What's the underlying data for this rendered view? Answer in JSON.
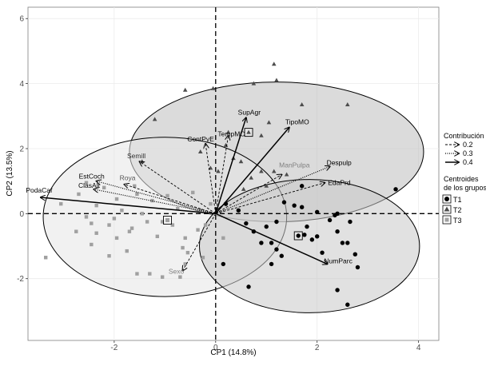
{
  "chart_data": {
    "type": "scatter",
    "title": "",
    "xlabel": "CP1 (14.8%)",
    "ylabel": "CP2 (13.5%)",
    "xlim": [
      -3.7,
      4.4
    ],
    "ylim": [
      -3.9,
      6.35
    ],
    "x_ticks": [
      -2,
      0,
      2,
      4
    ],
    "y_ticks": [
      -2,
      0,
      2,
      4,
      6
    ],
    "x_tick_labels": [
      "-2",
      "0",
      "2",
      "4"
    ],
    "y_tick_labels": [
      "-2",
      "0",
      "2",
      "4",
      "6"
    ],
    "grid": true,
    "colors": {
      "T1": "#000000",
      "T2": "#4d4d4d",
      "T3": "#a0a0a0",
      "ellipse_T1": "#c8c8c8",
      "ellipse_T2": "#bdbdbd",
      "ellipse_T3": "#e6e6e6"
    },
    "groups": [
      {
        "name": "T1",
        "marker": "circle",
        "ellipse": {
          "center": [
            1.85,
            -1.0
          ],
          "rx": 2.17,
          "ry": 2.05
        },
        "centroid": [
          1.63,
          -0.68
        ],
        "points": [
          [
            0.2,
            0.3
          ],
          [
            0.45,
            0.1
          ],
          [
            0.6,
            -0.3
          ],
          [
            0.75,
            -0.55
          ],
          [
            1.0,
            -0.4
          ],
          [
            1.2,
            -0.25
          ],
          [
            0.9,
            -0.9
          ],
          [
            1.2,
            -1.1
          ],
          [
            1.3,
            -1.3
          ],
          [
            1.35,
            0.35
          ],
          [
            1.55,
            0.25
          ],
          [
            1.7,
            0.2
          ],
          [
            1.8,
            -0.4
          ],
          [
            1.9,
            -0.8
          ],
          [
            2.0,
            -0.7
          ],
          [
            2.1,
            -1.2
          ],
          [
            2.25,
            -0.2
          ],
          [
            2.35,
            -0.05
          ],
          [
            2.4,
            0.0
          ],
          [
            2.65,
            -0.25
          ],
          [
            2.0,
            0.05
          ],
          [
            2.4,
            -0.55
          ],
          [
            2.5,
            -0.9
          ],
          [
            2.6,
            -0.9
          ],
          [
            2.75,
            -1.25
          ],
          [
            2.8,
            -1.65
          ],
          [
            1.7,
            0.85
          ],
          [
            1.75,
            -0.65
          ],
          [
            2.4,
            -2.35
          ],
          [
            2.6,
            -2.8
          ],
          [
            3.55,
            0.75
          ],
          [
            1.1,
            -1.55
          ],
          [
            0.65,
            -2.25
          ],
          [
            0.15,
            -1.55
          ],
          [
            1.1,
            -0.9
          ]
        ]
      },
      {
        "name": "T2",
        "marker": "triangle",
        "ellipse": {
          "center": [
            1.2,
            1.9
          ],
          "rx": 2.9,
          "ry": 2.15
        },
        "centroid": [
          0.65,
          2.5
        ],
        "points": [
          [
            -1.2,
            2.9
          ],
          [
            -0.6,
            3.8
          ],
          [
            -0.05,
            3.85
          ],
          [
            0.75,
            4.0
          ],
          [
            1.2,
            4.1
          ],
          [
            1.15,
            4.6
          ],
          [
            1.7,
            3.35
          ],
          [
            2.6,
            3.35
          ],
          [
            -1.45,
            1.6
          ],
          [
            -0.3,
            1.9
          ],
          [
            -0.1,
            1.4
          ],
          [
            0.2,
            2.1
          ],
          [
            0.05,
            1.3
          ],
          [
            0.35,
            1.7
          ],
          [
            0.5,
            1.6
          ],
          [
            0.7,
            1.1
          ],
          [
            0.9,
            1.3
          ],
          [
            0.55,
            0.75
          ],
          [
            1.0,
            0.85
          ],
          [
            1.15,
            1.3
          ],
          [
            1.4,
            1.2
          ],
          [
            0.25,
            2.5
          ],
          [
            0.9,
            2.4
          ],
          [
            1.05,
            2.8
          ]
        ]
      },
      {
        "name": "T3",
        "marker": "square",
        "ellipse": {
          "center": [
            -1.0,
            -0.1
          ],
          "rx": 2.4,
          "ry": 2.45
        },
        "centroid": [
          -0.95,
          -0.2
        ],
        "points": [
          [
            -3.35,
            -1.35
          ],
          [
            -3.05,
            0.3
          ],
          [
            -2.7,
            0.6
          ],
          [
            -2.55,
            -0.1
          ],
          [
            -2.45,
            -0.3
          ],
          [
            -2.35,
            -0.6
          ],
          [
            -2.35,
            0.25
          ],
          [
            -2.2,
            0.8
          ],
          [
            -2.1,
            -0.35
          ],
          [
            -2.0,
            -0.15
          ],
          [
            -1.85,
            0.1
          ],
          [
            -1.7,
            -0.55
          ],
          [
            -1.6,
            0.85
          ],
          [
            -1.55,
            0.6
          ],
          [
            -1.45,
            0.0
          ],
          [
            -1.35,
            -0.25
          ],
          [
            -1.25,
            0.4
          ],
          [
            -1.15,
            -0.7
          ],
          [
            -1.05,
            -0.25
          ],
          [
            -0.95,
            0.55
          ],
          [
            -0.85,
            -0.35
          ],
          [
            -0.75,
            0.15
          ],
          [
            -0.65,
            -1.05
          ],
          [
            -0.6,
            -0.75
          ],
          [
            -0.55,
            -1.2
          ],
          [
            -0.45,
            0.65
          ],
          [
            -0.35,
            -0.5
          ],
          [
            -0.3,
            0.1
          ],
          [
            -0.2,
            -0.35
          ],
          [
            -0.1,
            0.3
          ],
          [
            -2.75,
            -0.55
          ],
          [
            -2.45,
            -0.95
          ],
          [
            -1.95,
            -0.75
          ],
          [
            -1.55,
            -1.85
          ],
          [
            -1.3,
            -1.85
          ],
          [
            -1.05,
            -1.95
          ],
          [
            -0.7,
            -1.95
          ],
          [
            -0.6,
            -1.55
          ],
          [
            -2.55,
            0.95
          ],
          [
            -0.25,
            -1.35
          ],
          [
            -1.65,
            -0.45
          ],
          [
            -2.1,
            -1.3
          ],
          [
            0.15,
            -0.75
          ],
          [
            -1.95,
            0.45
          ],
          [
            -1.75,
            -1.15
          ]
        ]
      }
    ],
    "vectors": [
      {
        "name": "SupAgr",
        "x": 0.6,
        "y": 2.95,
        "contribution": 0.4
      },
      {
        "name": "TipoMO",
        "x": 1.45,
        "y": 2.65,
        "contribution": 0.4
      },
      {
        "name": "Despulp",
        "x": 2.25,
        "y": 1.45,
        "contribution": 0.3
      },
      {
        "name": "EdaPrd",
        "x": 2.15,
        "y": 0.95,
        "contribution": 0.2
      },
      {
        "name": "NumParc",
        "x": 2.2,
        "y": -1.55,
        "contribution": 0.4
      },
      {
        "name": "PodaCaf",
        "x": -3.45,
        "y": 0.5,
        "contribution": 0.4
      },
      {
        "name": "EstCoch",
        "x": -2.35,
        "y": 1.0,
        "contribution": 0.3
      },
      {
        "name": "ClasAlt",
        "x": -2.4,
        "y": 0.75,
        "contribution": 0.3
      },
      {
        "name": "ContPyE",
        "x": -0.2,
        "y": 2.15,
        "contribution": 0.2
      },
      {
        "name": "TempMO",
        "x": 0.25,
        "y": 2.4,
        "contribution": 0.2
      },
      {
        "name": "Semill",
        "x": -1.5,
        "y": 1.6,
        "contribution": 0.2
      },
      {
        "name": "Roya",
        "x": -1.8,
        "y": 0.9,
        "contribution": 0.2
      },
      {
        "name": "ManPulpa",
        "x": 1.3,
        "y": 1.2,
        "contribution": 0.2
      },
      {
        "name": "Sexo",
        "x": -0.65,
        "y": -1.75,
        "contribution": 0.2
      }
    ],
    "vector_label_colors": {
      "ManPulpa": "#7f7f7f",
      "Sexo": "#7f7f7f",
      "Roya": "#555555",
      "Semill": "#333333"
    },
    "legend": {
      "placement": "right",
      "contribution_title": "Contribución",
      "contribution_items": [
        {
          "label": "0.2",
          "style": "dashed"
        },
        {
          "label": "0.3",
          "style": "dotted"
        },
        {
          "label": "0.4",
          "style": "solid"
        }
      ],
      "groups_title_line1": "Centroides",
      "groups_title_line2": "de los grupos",
      "group_items": [
        "T1",
        "T2",
        "T3"
      ]
    }
  }
}
